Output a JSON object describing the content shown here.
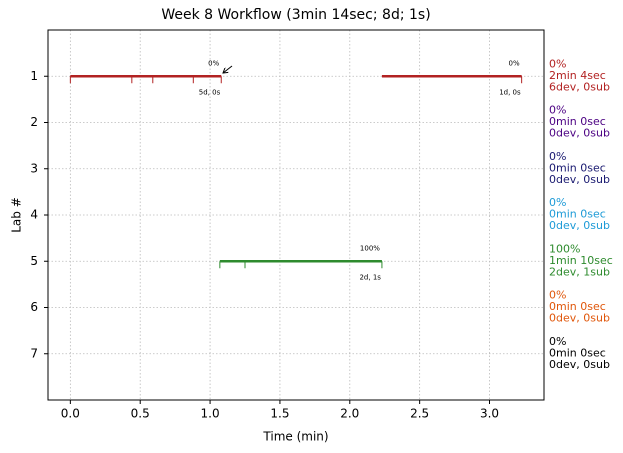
{
  "chart_data": {
    "type": "timeline",
    "title": "Week 8 Workflow (3min 14sec; 8d; 1s)",
    "x_label": "Time (min)",
    "y_label": "Lab #",
    "xlim": [
      -0.16,
      3.39
    ],
    "xticks": [
      {
        "value": 0,
        "label": "0.0"
      },
      {
        "value": 0.5,
        "label": "0.5"
      },
      {
        "value": 1,
        "label": "1.0"
      },
      {
        "value": 1.5,
        "label": "1.5"
      },
      {
        "value": 2,
        "label": "2.0"
      },
      {
        "value": 2.5,
        "label": "2.5"
      },
      {
        "value": 3,
        "label": "3.0"
      }
    ],
    "ylim": [
      8,
      0
    ],
    "yticks": [
      1,
      2,
      3,
      4,
      5,
      6,
      7
    ],
    "grid": true,
    "segments": [
      {
        "lab": 1,
        "start": 0,
        "end": 1.08,
        "color": "#b22222",
        "marks": [
          0,
          0.44,
          0.59,
          0.88,
          1.08
        ],
        "top_label": "0%",
        "bottom_label": "5d, 0s"
      },
      {
        "lab": 1,
        "start": 2.23,
        "end": 3.23,
        "color": "#b22222",
        "marks": [
          3.23
        ],
        "top_label": "0%",
        "bottom_label": "1d, 0s"
      },
      {
        "lab": 5,
        "start": 1.07,
        "end": 2.23,
        "color": "#2e8b2e",
        "marks": [
          1.07,
          1.25,
          2.23
        ],
        "top_label": "100%",
        "bottom_label": "2d, 1s"
      }
    ],
    "summaries": [
      {
        "lab": 1,
        "color": "#b22222",
        "lines": [
          "0%",
          "2min 4sec",
          "6dev, 0sub"
        ]
      },
      {
        "lab": 2,
        "color": "#4b0082",
        "lines": [
          "0%",
          "0min 0sec",
          "0dev, 0sub"
        ]
      },
      {
        "lab": 3,
        "color": "#191970",
        "lines": [
          "0%",
          "0min 0sec",
          "0dev, 0sub"
        ]
      },
      {
        "lab": 4,
        "color": "#1e9bd7",
        "lines": [
          "0%",
          "0min 0sec",
          "0dev, 0sub"
        ]
      },
      {
        "lab": 5,
        "color": "#2e8b2e",
        "lines": [
          "100%",
          "1min 10sec",
          "2dev, 1sub"
        ]
      },
      {
        "lab": 6,
        "color": "#e0570b",
        "lines": [
          "0%",
          "0min 0sec",
          "0dev, 0sub"
        ]
      },
      {
        "lab": 7,
        "color": "#000000",
        "lines": [
          "0%",
          "0min 0sec",
          "0dev, 0sub"
        ]
      }
    ]
  }
}
